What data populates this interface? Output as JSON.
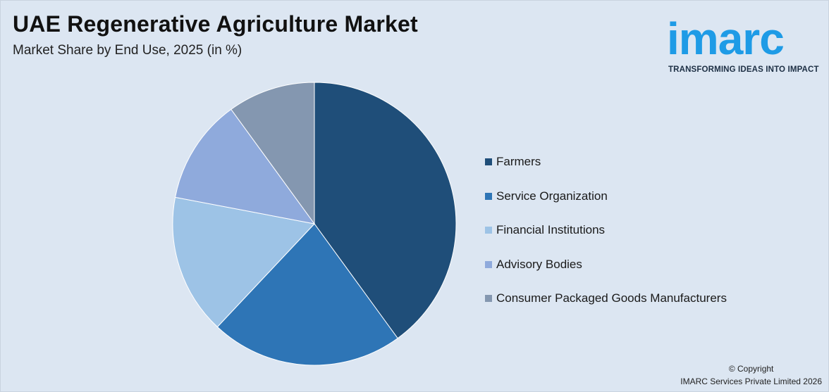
{
  "header": {
    "title": "UAE Regenerative Agriculture Market",
    "subtitle": "Market Share by End Use, 2025 (in %)"
  },
  "logo": {
    "word": "imarc",
    "tagline": "TRANSFORMING IDEAS INTO IMPACT",
    "color": "#1e9be6"
  },
  "chart_data": {
    "type": "pie",
    "title": "UAE Regenerative Agriculture Market",
    "subtitle": "Market Share by End Use, 2025 (in %)",
    "categories": [
      "Farmers",
      "Service Organization",
      "Financial Institutions",
      "Advisory Bodies",
      "Consumer Packaged Goods Manufacturers"
    ],
    "values": [
      40,
      22,
      16,
      12,
      10
    ],
    "colors": [
      "#1f4e79",
      "#2e75b6",
      "#9dc3e6",
      "#8faadc",
      "#8497b0"
    ],
    "legend_position": "right",
    "start_angle": "12 o'clock, clockwise"
  },
  "footer": {
    "copyright_line1": "© Copyright",
    "copyright_line2": "IMARC Services Private Limited 2026"
  }
}
